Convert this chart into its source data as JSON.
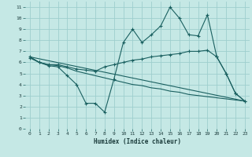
{
  "xlabel": "Humidex (Indice chaleur)",
  "xlim": [
    -0.5,
    23.5
  ],
  "ylim": [
    0,
    11.5
  ],
  "xticks": [
    0,
    1,
    2,
    3,
    4,
    5,
    6,
    7,
    8,
    9,
    10,
    11,
    12,
    13,
    14,
    15,
    16,
    17,
    18,
    19,
    20,
    21,
    22,
    23
  ],
  "yticks": [
    0,
    1,
    2,
    3,
    4,
    5,
    6,
    7,
    8,
    9,
    10,
    11
  ],
  "bg_color": "#c5e8e5",
  "grid_color": "#9ecece",
  "line_color": "#1a6060",
  "line1_x": [
    0,
    1,
    2,
    3,
    4,
    5,
    6,
    7,
    8,
    9,
    10,
    11,
    12,
    13,
    14,
    15,
    16,
    17,
    18,
    19,
    20,
    21,
    22,
    23
  ],
  "line1_y": [
    6.5,
    6.0,
    5.7,
    5.6,
    4.8,
    4.0,
    2.3,
    2.3,
    1.5,
    4.5,
    7.8,
    9.0,
    7.8,
    8.5,
    9.3,
    11.0,
    10.0,
    8.5,
    8.4,
    10.3,
    6.5,
    5.0,
    3.2,
    2.5
  ],
  "line2_x": [
    0,
    1,
    2,
    3,
    4,
    5,
    6,
    7,
    8,
    9,
    10,
    11,
    12,
    13,
    14,
    15,
    16,
    17,
    18,
    19,
    20,
    21,
    22,
    23
  ],
  "line2_y": [
    6.4,
    6.0,
    5.8,
    5.8,
    5.6,
    5.4,
    5.3,
    5.2,
    5.6,
    5.8,
    6.0,
    6.2,
    6.3,
    6.5,
    6.6,
    6.7,
    6.8,
    7.0,
    7.0,
    7.1,
    6.5,
    5.0,
    3.2,
    2.5
  ],
  "line3_x": [
    0,
    1,
    2,
    3,
    4,
    5,
    6,
    7,
    8,
    9,
    10,
    11,
    12,
    13,
    14,
    15,
    16,
    17,
    18,
    19,
    20,
    21,
    22,
    23
  ],
  "line3_y": [
    6.5,
    6.0,
    5.8,
    5.7,
    5.5,
    5.2,
    5.0,
    4.8,
    4.6,
    4.4,
    4.2,
    4.0,
    3.9,
    3.7,
    3.6,
    3.4,
    3.3,
    3.1,
    3.0,
    2.9,
    2.8,
    2.7,
    2.6,
    2.5
  ],
  "line4_x": [
    0,
    23
  ],
  "line4_y": [
    6.5,
    2.5
  ]
}
